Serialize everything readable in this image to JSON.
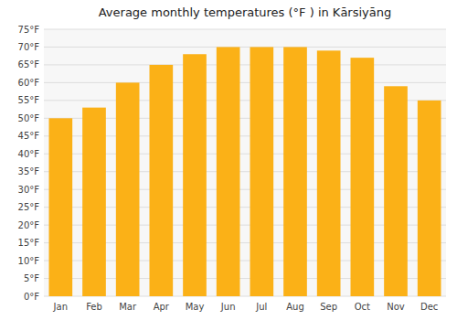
{
  "chart_data": {
    "type": "bar",
    "title": "Average monthly temperatures (°F ) in Kārsiyāng",
    "categories": [
      "Jan",
      "Feb",
      "Mar",
      "Apr",
      "May",
      "Jun",
      "Jul",
      "Aug",
      "Sep",
      "Oct",
      "Nov",
      "Dec"
    ],
    "values": [
      50,
      53,
      60,
      65,
      68,
      70,
      70,
      70,
      69,
      67,
      59,
      55
    ],
    "color": "#FBB117",
    "ylim": [
      0,
      75
    ],
    "yticks": [
      {
        "value": 0,
        "label": "0°F"
      },
      {
        "value": 5,
        "label": "5°F"
      },
      {
        "value": 10,
        "label": "10°F"
      },
      {
        "value": 15,
        "label": "15°F"
      },
      {
        "value": 20,
        "label": "20°F"
      },
      {
        "value": 25,
        "label": "25°F"
      },
      {
        "value": 30,
        "label": "30°F"
      },
      {
        "value": 35,
        "label": "35°F"
      },
      {
        "value": 40,
        "label": "40°F"
      },
      {
        "value": 45,
        "label": "45°F"
      },
      {
        "value": 50,
        "label": "50°F"
      },
      {
        "value": 55,
        "label": "55°F"
      },
      {
        "value": 60,
        "label": "60°F"
      },
      {
        "value": 65,
        "label": "65°F"
      },
      {
        "value": 70,
        "label": "70°F"
      },
      {
        "value": 75,
        "label": "75°F"
      }
    ],
    "grid": true
  }
}
